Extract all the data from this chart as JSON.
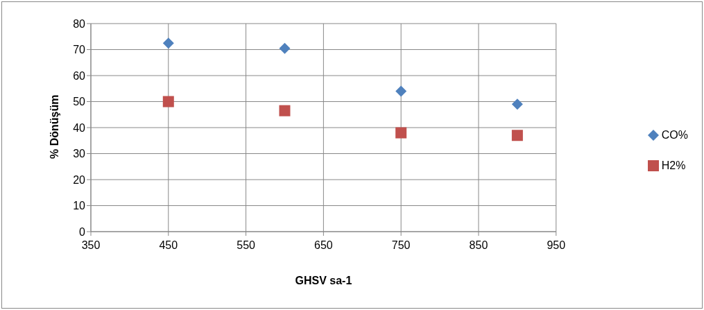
{
  "chart_data": {
    "type": "scatter",
    "xlabel": "GHSV  sa-1",
    "ylabel": "% Dönüşüm",
    "xlim": [
      350,
      950
    ],
    "xticks": [
      350,
      450,
      550,
      650,
      750,
      850,
      950
    ],
    "ylim": [
      0,
      80
    ],
    "yticks": [
      0,
      10,
      20,
      30,
      40,
      50,
      60,
      70,
      80
    ],
    "grid": true,
    "legend": "right",
    "series": [
      {
        "name": "CO%",
        "color": "#4f81bd",
        "marker": "diamond",
        "x": [
          450,
          600,
          750,
          900
        ],
        "values": [
          72.5,
          70.5,
          54,
          49
        ]
      },
      {
        "name": "H2%",
        "color": "#c0504d",
        "marker": "square",
        "x": [
          450,
          600,
          750,
          900
        ],
        "values": [
          50,
          46.5,
          38,
          37
        ]
      }
    ]
  }
}
